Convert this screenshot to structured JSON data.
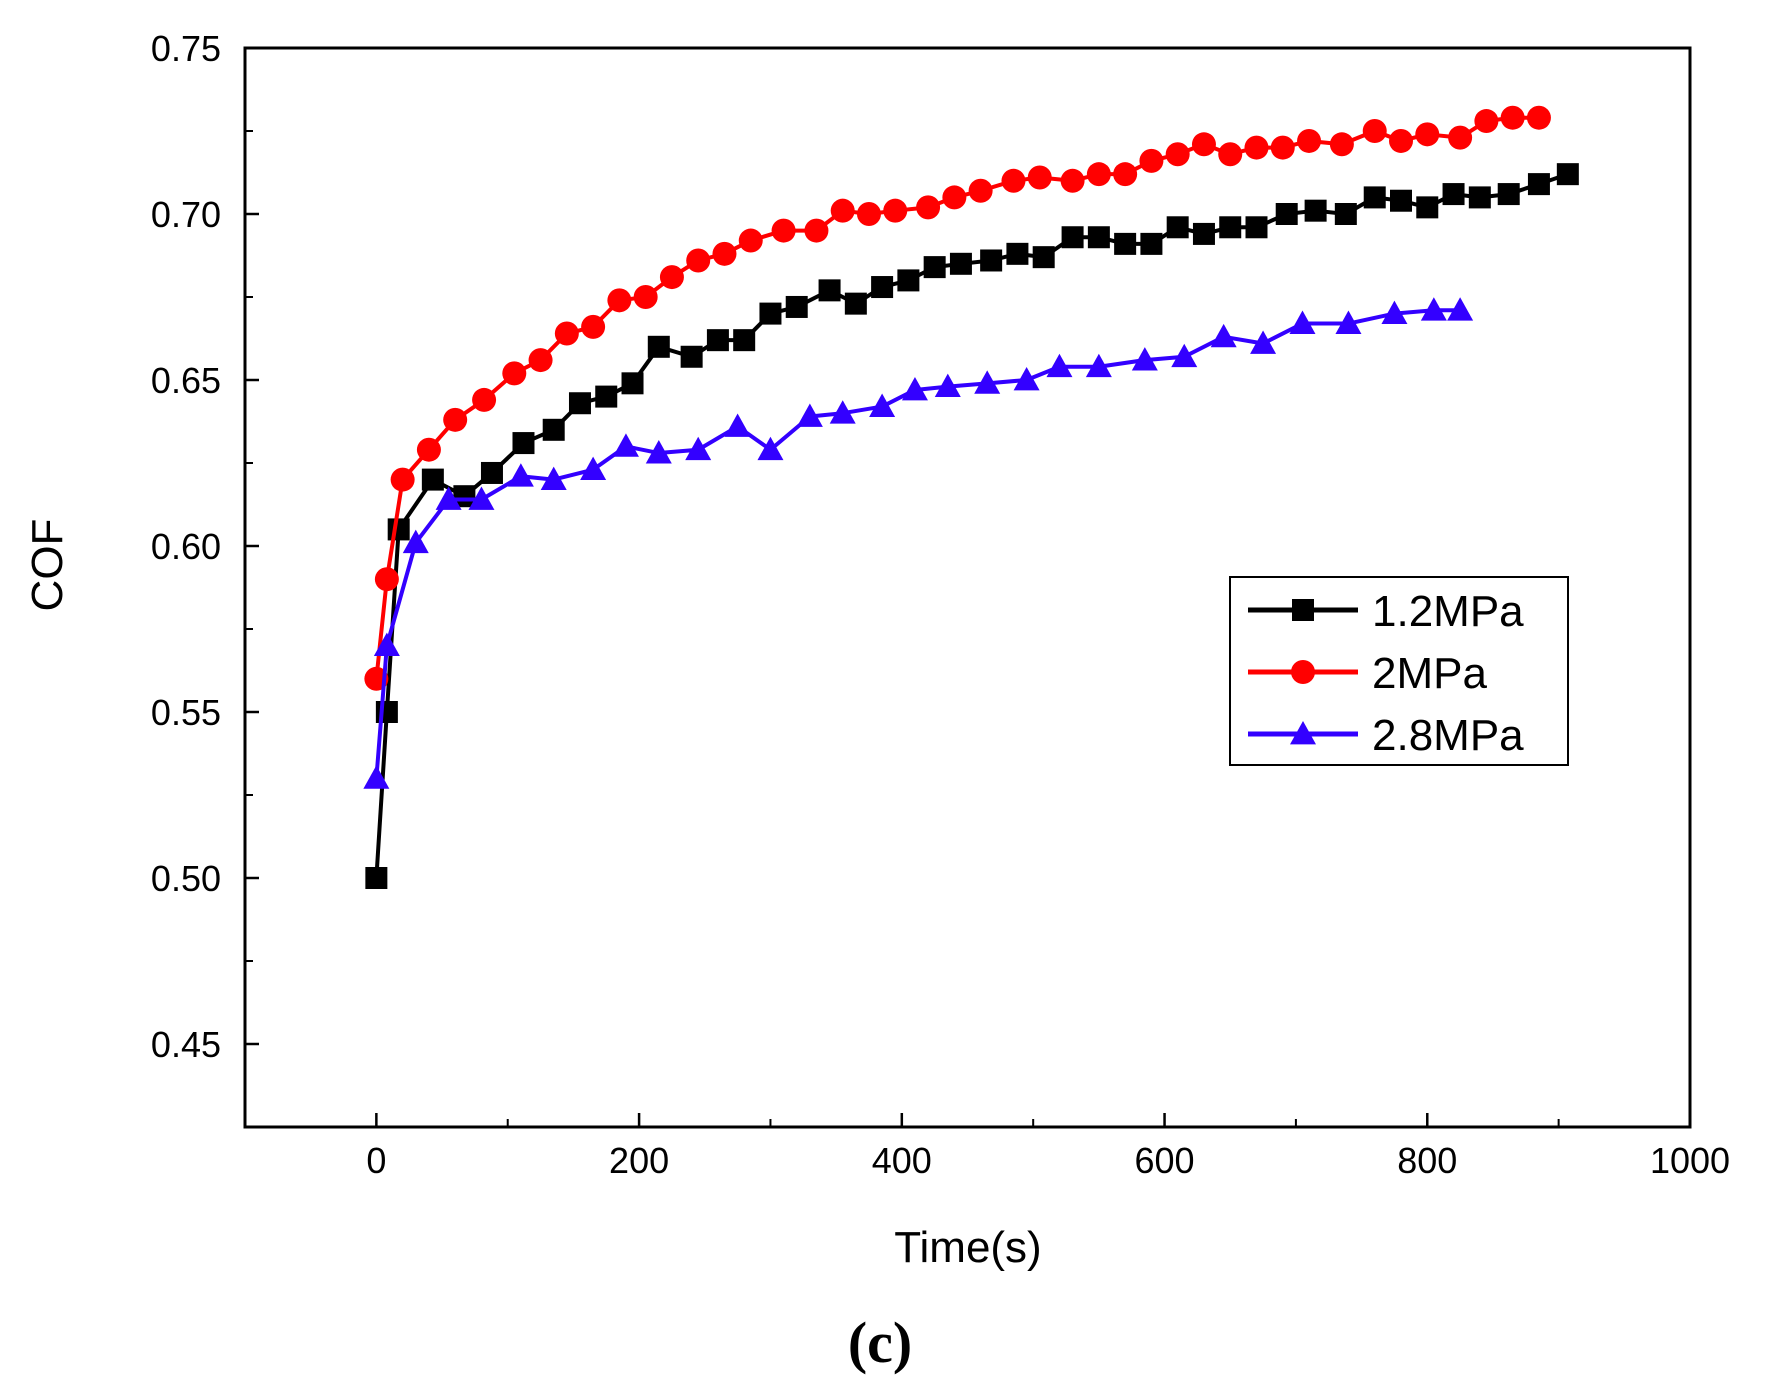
{
  "chart_data": {
    "type": "line",
    "xlabel": "Time(s)",
    "ylabel": "COF",
    "xlim": [
      -100,
      1000
    ],
    "ylim": [
      0.425,
      0.75
    ],
    "x_ticks": [
      0,
      200,
      400,
      600,
      800,
      1000
    ],
    "y_ticks": [
      0.45,
      0.5,
      0.55,
      0.6,
      0.65,
      0.7,
      0.75
    ],
    "x_tick_labels": [
      "0",
      "200",
      "400",
      "600",
      "800",
      "1000"
    ],
    "y_tick_labels": [
      "0.45",
      "0.50",
      "0.55",
      "0.60",
      "0.65",
      "0.70",
      "0.75"
    ],
    "panel_label": "(c)",
    "legend_position": "right-middle",
    "series": [
      {
        "name": "1.2MPa",
        "color": "#000000",
        "marker": "square",
        "x": [
          0,
          8,
          17,
          43,
          67,
          88,
          112,
          135,
          155,
          175,
          195,
          215,
          240,
          260,
          280,
          300,
          320,
          345,
          365,
          385,
          405,
          425,
          445,
          468,
          488,
          508,
          530,
          550,
          570,
          590,
          610,
          630,
          650,
          670,
          693,
          715,
          738,
          760,
          780,
          800,
          820,
          840,
          862,
          885,
          907
        ],
        "y": [
          0.5,
          0.55,
          0.605,
          0.62,
          0.615,
          0.622,
          0.631,
          0.635,
          0.643,
          0.645,
          0.649,
          0.66,
          0.657,
          0.662,
          0.662,
          0.67,
          0.672,
          0.677,
          0.673,
          0.678,
          0.68,
          0.684,
          0.685,
          0.686,
          0.688,
          0.687,
          0.693,
          0.693,
          0.691,
          0.691,
          0.696,
          0.694,
          0.696,
          0.696,
          0.7,
          0.701,
          0.7,
          0.705,
          0.704,
          0.702,
          0.706,
          0.705,
          0.706,
          0.709,
          0.712
        ]
      },
      {
        "name": "2MPa",
        "color": "#ff0000",
        "marker": "circle",
        "x": [
          0,
          8,
          20,
          40,
          60,
          82,
          105,
          125,
          145,
          165,
          185,
          205,
          225,
          245,
          265,
          285,
          310,
          335,
          355,
          375,
          395,
          420,
          440,
          460,
          485,
          505,
          530,
          550,
          570,
          590,
          610,
          630,
          650,
          670,
          690,
          710,
          735,
          760,
          780,
          800,
          825,
          845,
          865,
          885
        ],
        "y": [
          0.56,
          0.59,
          0.62,
          0.629,
          0.638,
          0.644,
          0.652,
          0.656,
          0.664,
          0.666,
          0.674,
          0.675,
          0.681,
          0.686,
          0.688,
          0.692,
          0.695,
          0.695,
          0.701,
          0.7,
          0.701,
          0.702,
          0.705,
          0.707,
          0.71,
          0.711,
          0.71,
          0.712,
          0.712,
          0.716,
          0.718,
          0.721,
          0.718,
          0.72,
          0.72,
          0.722,
          0.721,
          0.725,
          0.722,
          0.724,
          0.723,
          0.728,
          0.729,
          0.729
        ]
      },
      {
        "name": "2.8MPa",
        "color": "#3300ff",
        "marker": "triangle",
        "x": [
          0,
          8,
          30,
          55,
          80,
          110,
          135,
          165,
          190,
          215,
          245,
          275,
          300,
          330,
          355,
          385,
          410,
          435,
          465,
          495,
          520,
          550,
          585,
          615,
          645,
          675,
          705,
          740,
          775,
          805,
          825
        ],
        "y": [
          0.53,
          0.57,
          0.601,
          0.614,
          0.614,
          0.621,
          0.62,
          0.623,
          0.63,
          0.628,
          0.629,
          0.636,
          0.629,
          0.639,
          0.64,
          0.642,
          0.647,
          0.648,
          0.649,
          0.65,
          0.654,
          0.654,
          0.656,
          0.657,
          0.663,
          0.661,
          0.667,
          0.667,
          0.67,
          0.671,
          0.671
        ]
      }
    ]
  }
}
